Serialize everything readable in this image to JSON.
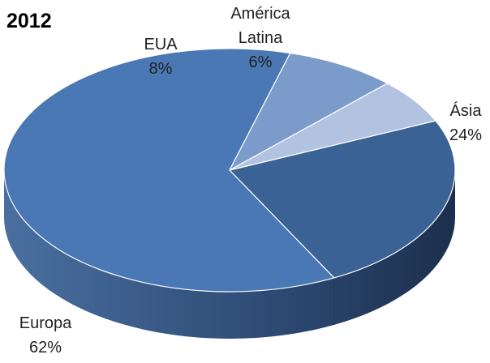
{
  "chart_data": {
    "type": "pie",
    "title": "2012",
    "series": [
      {
        "values": [
          {
            "category": "Ásia",
            "percent_label": "24%",
            "value": 24,
            "color": "#3a6294"
          },
          {
            "category": "Europa",
            "percent_label": "62%",
            "value": 62,
            "color": "#4a78b4"
          },
          {
            "category": "EUA",
            "percent_label": "8%",
            "value": 8,
            "color": "#7b9bcb"
          },
          {
            "category": "América Latina",
            "percent_label": "6%",
            "value": 6,
            "color": "#b2c3e1"
          }
        ]
      }
    ]
  }
}
